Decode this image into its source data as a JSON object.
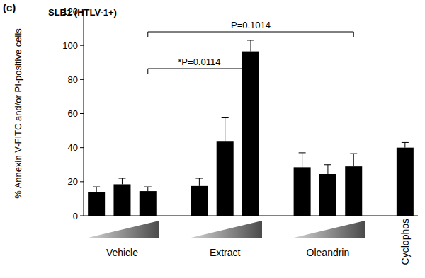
{
  "chart_data": {
    "type": "bar",
    "panel_label": "(c)",
    "title": "SLB1 (HTLV-1+)",
    "y_label": "% Annexin V-FITC and/or PI-positive cells",
    "categories": [
      null,
      null,
      null,
      null,
      null,
      null,
      null,
      null,
      null,
      null
    ],
    "values": [
      14,
      18.5,
      14.5,
      17.5,
      43.5,
      96.5,
      28.5,
      24.5,
      29,
      40
    ],
    "errors": [
      3,
      3.5,
      2.5,
      4.5,
      14,
      6.5,
      8.5,
      5.5,
      7.5,
      3
    ],
    "groups": [
      {
        "label": "Vehicle",
        "size": 3
      },
      {
        "label": "Extract",
        "size": 3
      },
      {
        "label": "Oleandrin",
        "size": 3
      },
      {
        "label": "Cyclophos",
        "size": 1
      }
    ],
    "annotations": [
      {
        "text": "*P=0.0114",
        "from": 2,
        "to": 5
      },
      {
        "text": "P=0.1014",
        "from": 2,
        "to": 8
      }
    ],
    "color": "#000000",
    "ylim": [
      0,
      120
    ],
    "yticks": [
      0,
      20,
      40,
      60,
      80,
      100,
      120
    ],
    "grid": false
  }
}
